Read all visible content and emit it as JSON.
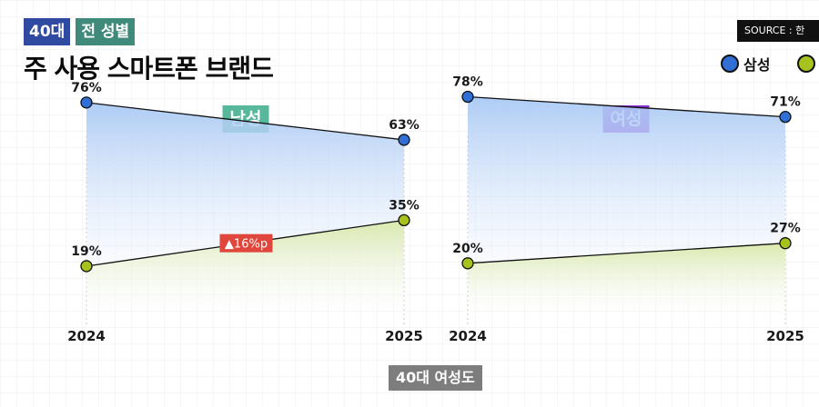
{
  "header": {
    "age_tag": "40대",
    "gender_tag": "전 성별",
    "title": "주 사용 스마트폰 브랜드",
    "source": "SOURCE : 한"
  },
  "legend": [
    {
      "label": "삼성",
      "color": "#2f6fd6"
    },
    {
      "label": "",
      "color": "#a6c21d"
    }
  ],
  "colors": {
    "samsung": "#2f6fd6",
    "other": "#a6c21d",
    "samsung_fill_top": "#a9c9f4",
    "other_fill_top": "#d8e8a8"
  },
  "footer": "40대 여성도",
  "chart_data": [
    {
      "type": "line",
      "title": "남성",
      "title_color": "#58b89b",
      "x": [
        "2024",
        "2025"
      ],
      "ylim": [
        0,
        100
      ],
      "series": [
        {
          "name": "삼성",
          "values": [
            76,
            63
          ],
          "labels": [
            "76%",
            "63%"
          ]
        },
        {
          "values": [
            19,
            35
          ],
          "labels": [
            "19%",
            "35%"
          ]
        }
      ],
      "annotation": {
        "text": "▲16%p",
        "color": "#e0463b"
      }
    },
    {
      "type": "line",
      "title": "여성",
      "title_color": "#8a2fd1",
      "x": [
        "2024",
        "2025"
      ],
      "ylim": [
        0,
        100
      ],
      "series": [
        {
          "name": "삼성",
          "values": [
            78,
            71
          ],
          "labels": [
            "78%",
            "71%"
          ]
        },
        {
          "values": [
            20,
            27
          ],
          "labels": [
            "20%",
            "27%"
          ]
        }
      ]
    }
  ]
}
